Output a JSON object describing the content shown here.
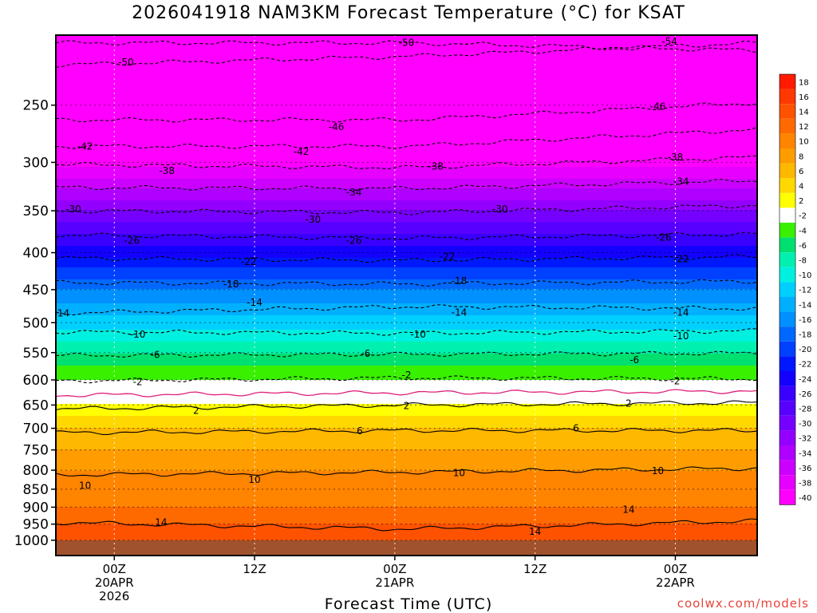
{
  "title": "2026041918 NAM3KM Forecast Temperature (°C) for KSAT",
  "credit": "coolwx.com/models",
  "chart_data": {
    "type": "heatmap",
    "title": "2026041918 NAM3KM Forecast Temperature (°C) for KSAT",
    "xlabel": "Forecast Time (UTC)",
    "ylabel": "",
    "y_scale": "log-pressure",
    "y_inverted": true,
    "xlim_hours": [
      -5,
      55
    ],
    "ylim": [
      1050,
      200
    ],
    "x_ticks": [
      {
        "hour": 0,
        "lines": [
          "00Z",
          "20APR",
          "2026"
        ]
      },
      {
        "hour": 12,
        "lines": [
          "12Z"
        ]
      },
      {
        "hour": 24,
        "lines": [
          "00Z",
          "21APR"
        ]
      },
      {
        "hour": 36,
        "lines": [
          "12Z"
        ]
      },
      {
        "hour": 48,
        "lines": [
          "00Z",
          "22APR"
        ]
      }
    ],
    "y_ticks": [
      250,
      300,
      350,
      400,
      450,
      500,
      550,
      600,
      650,
      700,
      750,
      800,
      850,
      900,
      950,
      1000
    ],
    "grid": true,
    "surface_pressure": 1000,
    "colorbar": {
      "ticks": [
        18,
        16,
        14,
        12,
        10,
        8,
        6,
        4,
        2,
        -2,
        -4,
        -6,
        -8,
        -10,
        -12,
        -14,
        -16,
        -18,
        -20,
        -22,
        -24,
        -26,
        -28,
        -30,
        -32,
        -34,
        -36,
        -38,
        -40
      ],
      "colors": [
        "#ff1a00",
        "#ff3800",
        "#ff5200",
        "#ff6a00",
        "#ff8400",
        "#ff9c00",
        "#ffb800",
        "#ffd800",
        "#ffff00",
        "#ffffff",
        "#38f000",
        "#00e070",
        "#00f0b0",
        "#00f0e0",
        "#00d0ff",
        "#00b0ff",
        "#0090ff",
        "#0068ff",
        "#0040ff",
        "#0018ff",
        "#1400ff",
        "#3a00ff",
        "#5800ff",
        "#7600ff",
        "#9400ff",
        "#b000ff",
        "#cc00ff",
        "#e600ff",
        "#ff00ff"
      ]
    },
    "temperature_profile": [
      {
        "p": 1000,
        "t": 15
      },
      {
        "p": 950,
        "t": 14
      },
      {
        "p": 900,
        "t": 12
      },
      {
        "p": 850,
        "t": 11
      },
      {
        "p": 800,
        "t": 10
      },
      {
        "p": 750,
        "t": 8
      },
      {
        "p": 700,
        "t": 6
      },
      {
        "p": 650,
        "t": 2
      },
      {
        "p": 600,
        "t": -2
      },
      {
        "p": 550,
        "t": -6
      },
      {
        "p": 500,
        "t": -11
      },
      {
        "p": 450,
        "t": -16
      },
      {
        "p": 400,
        "t": -23
      },
      {
        "p": 350,
        "t": -30
      },
      {
        "p": 300,
        "t": -39
      },
      {
        "p": 250,
        "t": -47
      },
      {
        "p": 200,
        "t": -53
      }
    ],
    "contours": [
      {
        "level": -50,
        "style": "dashed",
        "pressures": [
          220,
          214,
          205
        ]
      },
      {
        "level": -54,
        "style": "dashed",
        "pressures": [
          205,
          205,
          210
        ]
      },
      {
        "level": -46,
        "style": "dashed",
        "pressures": [
          262,
          262,
          248
        ]
      },
      {
        "level": -42,
        "style": "dashed",
        "pressures": [
          285,
          285,
          270
        ]
      },
      {
        "level": -38,
        "style": "dashed",
        "pressures": [
          302,
          305,
          295
        ]
      },
      {
        "level": -34,
        "style": "dashed",
        "pressures": [
          325,
          326,
          318
        ]
      },
      {
        "level": -30,
        "style": "dashed",
        "pressures": [
          350,
          352,
          344
        ]
      },
      {
        "level": -26,
        "style": "dashed",
        "pressures": [
          378,
          382,
          377
        ]
      },
      {
        "level": -22,
        "style": "dashed",
        "pressures": [
          407,
          410,
          405
        ]
      },
      {
        "level": -18,
        "style": "dashed",
        "pressures": [
          440,
          442,
          438
        ]
      },
      {
        "level": -14,
        "style": "dashed",
        "pressures": [
          485,
          475,
          478
        ]
      },
      {
        "level": -10,
        "style": "dashed",
        "pressures": [
          515,
          517,
          513
        ]
      },
      {
        "level": -6,
        "style": "dashed",
        "pressures": [
          555,
          553,
          551
        ]
      },
      {
        "level": -2,
        "style": "dashed",
        "pressures": [
          602,
          596,
          598
        ]
      },
      {
        "level": 0,
        "style": "solid-magenta",
        "pressures": [
          630,
          625,
          622
        ]
      },
      {
        "level": 2,
        "style": "solid",
        "pressures": [
          658,
          650,
          645
        ]
      },
      {
        "level": 6,
        "style": "solid",
        "pressures": [
          710,
          705,
          705
        ]
      },
      {
        "level": 10,
        "style": "solid",
        "pressures": [
          812,
          805,
          795
        ]
      },
      {
        "level": 14,
        "style": "solid",
        "pressures": [
          945,
          965,
          940
        ]
      }
    ],
    "contour_labels": [
      {
        "text": "-50",
        "hour": 1,
        "p": 218
      },
      {
        "text": "-50",
        "hour": 25,
        "p": 205
      },
      {
        "text": "-54",
        "hour": 47.5,
        "p": 204
      },
      {
        "text": "-46",
        "hour": 19,
        "p": 268
      },
      {
        "text": "-46",
        "hour": 46.5,
        "p": 251
      },
      {
        "text": "-42",
        "hour": -2.5,
        "p": 285
      },
      {
        "text": "-42",
        "hour": 16,
        "p": 290
      },
      {
        "text": "-38",
        "hour": 4.5,
        "p": 308
      },
      {
        "text": "-38",
        "hour": 27.5,
        "p": 304
      },
      {
        "text": "-38",
        "hour": 48,
        "p": 295
      },
      {
        "text": "-34",
        "hour": 20.5,
        "p": 330
      },
      {
        "text": "-34",
        "hour": 48.5,
        "p": 319
      },
      {
        "text": "-30",
        "hour": -3.5,
        "p": 348
      },
      {
        "text": "-30",
        "hour": 17,
        "p": 360
      },
      {
        "text": "-30",
        "hour": 33,
        "p": 348
      },
      {
        "text": "-26",
        "hour": 1.5,
        "p": 385
      },
      {
        "text": "-26",
        "hour": 20.5,
        "p": 385
      },
      {
        "text": "-26",
        "hour": 47,
        "p": 381
      },
      {
        "text": "-22",
        "hour": 11.5,
        "p": 412
      },
      {
        "text": "-22",
        "hour": 28.5,
        "p": 405
      },
      {
        "text": "-22",
        "hour": 48.5,
        "p": 408
      },
      {
        "text": "-18",
        "hour": 10,
        "p": 442
      },
      {
        "text": "-18",
        "hour": 29.5,
        "p": 438
      },
      {
        "text": "-14",
        "hour": -4.5,
        "p": 485
      },
      {
        "text": "-14",
        "hour": 12,
        "p": 469
      },
      {
        "text": "-14",
        "hour": 29.5,
        "p": 484
      },
      {
        "text": "-14",
        "hour": 48.5,
        "p": 484
      },
      {
        "text": "-10",
        "hour": 2,
        "p": 519
      },
      {
        "text": "-10",
        "hour": 26,
        "p": 519
      },
      {
        "text": "-10",
        "hour": 48.5,
        "p": 522
      },
      {
        "text": "-6",
        "hour": 3.5,
        "p": 554
      },
      {
        "text": "-6",
        "hour": 21.5,
        "p": 552
      },
      {
        "text": "-6",
        "hour": 44.5,
        "p": 563
      },
      {
        "text": "-2",
        "hour": 2,
        "p": 604
      },
      {
        "text": "-2",
        "hour": 25,
        "p": 591
      },
      {
        "text": "-2",
        "hour": 48,
        "p": 602
      },
      {
        "text": "2",
        "hour": 7,
        "p": 662
      },
      {
        "text": "2",
        "hour": 25,
        "p": 652
      },
      {
        "text": "2",
        "hour": 44,
        "p": 647
      },
      {
        "text": "6",
        "hour": 21,
        "p": 706
      },
      {
        "text": "6",
        "hour": 39.5,
        "p": 700
      },
      {
        "text": "10",
        "hour": -2.5,
        "p": 841
      },
      {
        "text": "10",
        "hour": 12,
        "p": 825
      },
      {
        "text": "10",
        "hour": 29.5,
        "p": 807
      },
      {
        "text": "10",
        "hour": 46.5,
        "p": 802
      },
      {
        "text": "14",
        "hour": 4,
        "p": 945
      },
      {
        "text": "14",
        "hour": 44,
        "p": 907
      },
      {
        "text": "14",
        "hour": 36,
        "p": 973
      }
    ]
  }
}
